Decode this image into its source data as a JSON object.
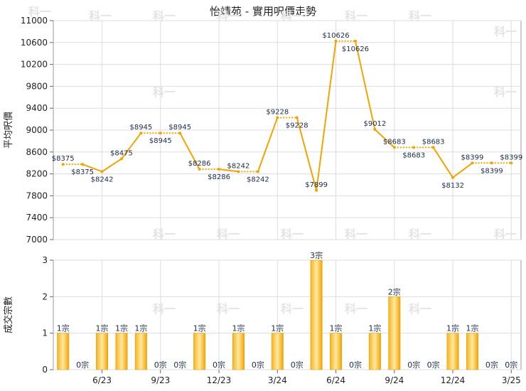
{
  "title": "怡靖苑 - 實用呎價走勢",
  "chart_data": [
    {
      "type": "line",
      "ylabel": "平均呎價",
      "ylim": [
        7000,
        11000
      ],
      "yticks": [
        7000,
        7400,
        7800,
        8200,
        8600,
        9000,
        9400,
        9800,
        10200,
        10600,
        11000
      ],
      "grid": true,
      "color": "#f5a300",
      "x": [
        "2023-04",
        "2023-05",
        "2023-06",
        "2023-07",
        "2023-08",
        "2023-09",
        "2023-10",
        "2023-11",
        "2023-12",
        "2024-01",
        "2024-02",
        "2024-03",
        "2024-04",
        "2024-05",
        "2024-06",
        "2024-07",
        "2024-08",
        "2024-09",
        "2024-10",
        "2024-11",
        "2024-12",
        "2025-01",
        "2025-02",
        "2025-03"
      ],
      "values": [
        8375,
        8375,
        8242,
        8475,
        8945,
        8945,
        8945,
        8286,
        8286,
        8242,
        8242,
        9228,
        9228,
        7899,
        10626,
        10626,
        9012,
        8683,
        8683,
        8683,
        8132,
        8399,
        8399,
        8399
      ],
      "has_transaction": [
        true,
        false,
        true,
        true,
        true,
        false,
        false,
        true,
        false,
        true,
        false,
        true,
        false,
        true,
        true,
        false,
        true,
        true,
        false,
        false,
        true,
        true,
        false,
        false
      ],
      "point_labels": [
        "$8375",
        "$8375",
        "$8242",
        "$8475",
        "$8945",
        "$8945",
        "$8945",
        "$8286",
        "$8286",
        "$8242",
        "$8242",
        "$9228",
        "$9228",
        "$7899",
        "$10626",
        "$10626",
        "$9012",
        "$8683",
        "$8683",
        "$8683",
        "$8132",
        "$8399",
        "$8399",
        "$8399"
      ]
    },
    {
      "type": "bar",
      "ylabel": "成交宗數",
      "ylim": [
        0,
        3
      ],
      "yticks": [
        0,
        1,
        2,
        3
      ],
      "grid": true,
      "color": "#f5a300",
      "x": [
        "2023-04",
        "2023-05",
        "2023-06",
        "2023-07",
        "2023-08",
        "2023-09",
        "2023-10",
        "2023-11",
        "2023-12",
        "2024-01",
        "2024-02",
        "2024-03",
        "2024-04",
        "2024-05",
        "2024-06",
        "2024-07",
        "2024-08",
        "2024-09",
        "2024-10",
        "2024-11",
        "2024-12",
        "2025-01",
        "2025-02",
        "2025-03"
      ],
      "values": [
        1,
        0,
        1,
        1,
        1,
        0,
        0,
        1,
        0,
        1,
        0,
        1,
        0,
        3,
        1,
        0,
        1,
        2,
        0,
        0,
        1,
        1,
        0,
        0
      ],
      "bar_labels": [
        "1宗",
        "0宗",
        "1宗",
        "1宗",
        "1宗",
        "0宗",
        "0宗",
        "1宗",
        "0宗",
        "1宗",
        "0宗",
        "1宗",
        "0宗",
        "3宗",
        "1宗",
        "0宗",
        "1宗",
        "2宗",
        "0宗",
        "0宗",
        "1宗",
        "1宗",
        "0宗",
        "0宗"
      ]
    }
  ],
  "x_axis": {
    "labels": [
      {
        "text": "6/23",
        "index": 2
      },
      {
        "text": "9/23",
        "index": 5
      },
      {
        "text": "12/23",
        "index": 8
      },
      {
        "text": "3/24",
        "index": 11
      },
      {
        "text": "6/24",
        "index": 14
      },
      {
        "text": "9/24",
        "index": 17
      },
      {
        "text": "12/24",
        "index": 20
      },
      {
        "text": "3/25",
        "index": 23
      }
    ]
  },
  "watermark_text": "科一"
}
